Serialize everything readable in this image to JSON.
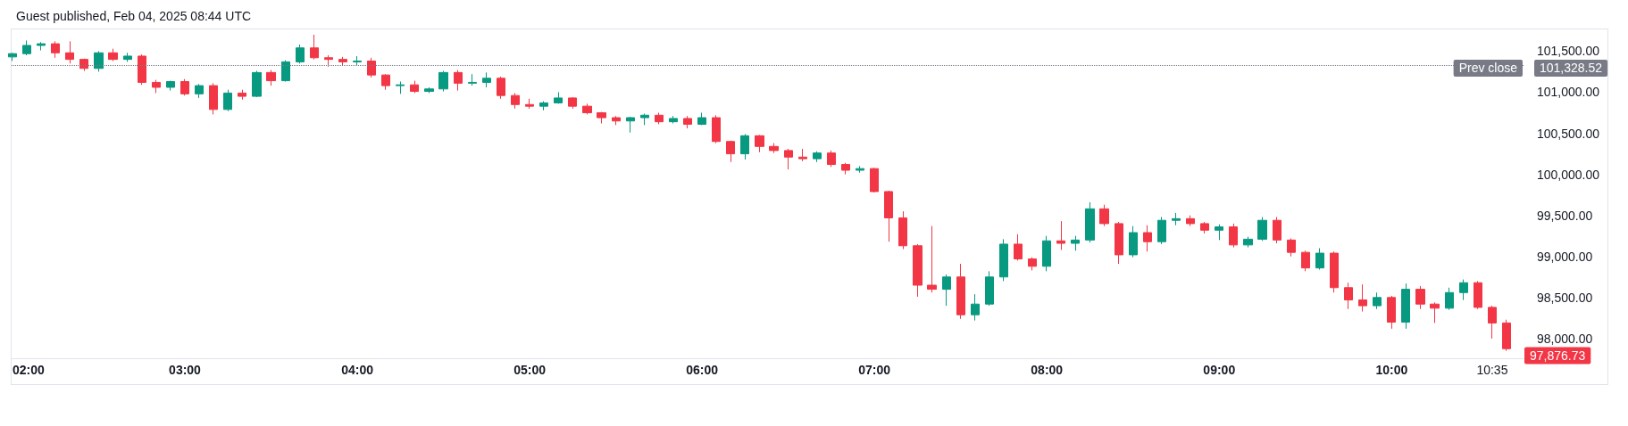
{
  "chart_data": {
    "type": "candlestick",
    "title": "Guest published, Feb 04, 2025 08:44 UTC",
    "x": [
      2,
      2.0833,
      2.1667,
      2.25,
      2.3333,
      2.4167,
      2.5,
      2.5833,
      2.6667,
      2.75,
      2.8333,
      2.9167,
      3,
      3.0833,
      3.1667,
      3.25,
      3.3333,
      3.4167,
      3.5,
      3.5833,
      3.6667,
      3.75,
      3.8333,
      3.9167,
      4,
      4.0833,
      4.1667,
      4.25,
      4.3333,
      4.4167,
      4.5,
      4.5833,
      4.6667,
      4.75,
      4.8333,
      4.9167,
      5,
      5.0833,
      5.1667,
      5.25,
      5.3333,
      5.4167,
      5.5,
      5.5833,
      5.6667,
      5.75,
      5.8333,
      5.9167,
      6,
      6.0833,
      6.1667,
      6.25,
      6.3333,
      6.4167,
      6.5,
      6.5833,
      6.6667,
      6.75,
      6.8333,
      6.9167,
      7,
      7.0833,
      7.1667,
      7.25,
      7.3333,
      7.4167,
      7.5,
      7.5833,
      7.6667,
      7.75,
      7.8333,
      7.9167,
      8,
      8.0833,
      8.1667,
      8.25,
      8.3333,
      8.4167,
      8.5,
      8.5833,
      8.6667,
      8.75,
      8.8333,
      8.9167,
      9,
      9.0833,
      9.1667,
      9.25,
      9.3333,
      9.4167,
      9.5,
      9.5833,
      9.6667,
      9.75,
      9.8333,
      9.9167,
      10,
      10.0833,
      10.1667,
      10.25,
      10.3333,
      10.4167,
      10.5,
      10.5833,
      10.6667
    ],
    "ohlc": [
      [
        101430,
        101480,
        101380,
        101470
      ],
      [
        101470,
        101630,
        101450,
        101570
      ],
      [
        101570,
        101610,
        101510,
        101590
      ],
      [
        101590,
        101620,
        101420,
        101480
      ],
      [
        101480,
        101620,
        101350,
        101400
      ],
      [
        101400,
        101410,
        101260,
        101290
      ],
      [
        101290,
        101500,
        101250,
        101480
      ],
      [
        101480,
        101530,
        101380,
        101400
      ],
      [
        101400,
        101480,
        101370,
        101440
      ],
      [
        101440,
        101460,
        101090,
        101120
      ],
      [
        101120,
        101150,
        100990,
        101060
      ],
      [
        101060,
        101140,
        101020,
        101130
      ],
      [
        101130,
        101160,
        100960,
        100980
      ],
      [
        100980,
        101100,
        100930,
        101080
      ],
      [
        101080,
        101110,
        100730,
        100790
      ],
      [
        100790,
        101030,
        100770,
        100990
      ],
      [
        100990,
        101030,
        100910,
        100950
      ],
      [
        100950,
        101260,
        100940,
        101240
      ],
      [
        101240,
        101270,
        101080,
        101140
      ],
      [
        101140,
        101390,
        101130,
        101370
      ],
      [
        101370,
        101580,
        101350,
        101540
      ],
      [
        101540,
        101700,
        101400,
        101420
      ],
      [
        101420,
        101450,
        101310,
        101400
      ],
      [
        101400,
        101430,
        101320,
        101370
      ],
      [
        101370,
        101440,
        101320,
        101380
      ],
      [
        101380,
        101420,
        101180,
        101210
      ],
      [
        101210,
        101220,
        101030,
        101080
      ],
      [
        101080,
        101130,
        100980,
        101090
      ],
      [
        101090,
        101140,
        100990,
        101010
      ],
      [
        101010,
        101060,
        100990,
        101040
      ],
      [
        101040,
        101260,
        101010,
        101240
      ],
      [
        101240,
        101270,
        101020,
        101110
      ],
      [
        101110,
        101220,
        101080,
        101120
      ],
      [
        101120,
        101240,
        101060,
        101170
      ],
      [
        101170,
        101190,
        100920,
        100960
      ],
      [
        100960,
        100990,
        100800,
        100850
      ],
      [
        100850,
        100920,
        100800,
        100830
      ],
      [
        100830,
        100890,
        100780,
        100870
      ],
      [
        100870,
        101000,
        100860,
        100930
      ],
      [
        100930,
        100940,
        100800,
        100830
      ],
      [
        100830,
        100860,
        100730,
        100750
      ],
      [
        100750,
        100760,
        100620,
        100690
      ],
      [
        100690,
        100710,
        100600,
        100650
      ],
      [
        100650,
        100700,
        100510,
        100690
      ],
      [
        100690,
        100740,
        100600,
        100720
      ],
      [
        100720,
        100750,
        100610,
        100640
      ],
      [
        100640,
        100710,
        100620,
        100680
      ],
      [
        100680,
        100710,
        100560,
        100610
      ],
      [
        100610,
        100750,
        100600,
        100690
      ],
      [
        100690,
        100720,
        100380,
        100400
      ],
      [
        100400,
        100410,
        100150,
        100250
      ],
      [
        100250,
        100490,
        100180,
        100470
      ],
      [
        100470,
        100480,
        100270,
        100340
      ],
      [
        100340,
        100380,
        100260,
        100290
      ],
      [
        100290,
        100310,
        100060,
        100210
      ],
      [
        100210,
        100310,
        100160,
        100190
      ],
      [
        100190,
        100280,
        100150,
        100260
      ],
      [
        100260,
        100290,
        100090,
        100120
      ],
      [
        100120,
        100140,
        100000,
        100050
      ],
      [
        100050,
        100100,
        100020,
        100070
      ],
      [
        100070,
        100080,
        99780,
        99790
      ],
      [
        99790,
        99800,
        99180,
        99470
      ],
      [
        99470,
        99550,
        99090,
        99130
      ],
      [
        99130,
        99150,
        98510,
        98650
      ],
      [
        98650,
        99370,
        98560,
        98600
      ],
      [
        98600,
        98780,
        98400,
        98750
      ],
      [
        98750,
        98910,
        98240,
        98290
      ],
      [
        98290,
        98540,
        98220,
        98420
      ],
      [
        98420,
        98820,
        98400,
        98750
      ],
      [
        98750,
        99210,
        98700,
        99150
      ],
      [
        99150,
        99270,
        98950,
        98970
      ],
      [
        98970,
        98990,
        98830,
        98880
      ],
      [
        98880,
        99250,
        98820,
        99190
      ],
      [
        99190,
        99430,
        99080,
        99160
      ],
      [
        99160,
        99250,
        99070,
        99200
      ],
      [
        99200,
        99660,
        99170,
        99580
      ],
      [
        99580,
        99630,
        99370,
        99400
      ],
      [
        99400,
        99420,
        98910,
        99020
      ],
      [
        99020,
        99370,
        98990,
        99290
      ],
      [
        99290,
        99380,
        99060,
        99180
      ],
      [
        99180,
        99480,
        99150,
        99440
      ],
      [
        99440,
        99530,
        99380,
        99460
      ],
      [
        99460,
        99500,
        99370,
        99400
      ],
      [
        99400,
        99420,
        99280,
        99320
      ],
      [
        99320,
        99390,
        99200,
        99360
      ],
      [
        99360,
        99400,
        99110,
        99140
      ],
      [
        99140,
        99240,
        99110,
        99210
      ],
      [
        99210,
        99480,
        99190,
        99440
      ],
      [
        99440,
        99480,
        99160,
        99200
      ],
      [
        99200,
        99220,
        99000,
        99050
      ],
      [
        99050,
        99070,
        98820,
        98860
      ],
      [
        98860,
        99100,
        98840,
        99040
      ],
      [
        99040,
        99060,
        98560,
        98620
      ],
      [
        98620,
        98680,
        98360,
        98470
      ],
      [
        98470,
        98660,
        98330,
        98400
      ],
      [
        98400,
        98560,
        98360,
        98500
      ],
      [
        98500,
        98520,
        98120,
        98200
      ],
      [
        98200,
        98670,
        98120,
        98600
      ],
      [
        98600,
        98640,
        98360,
        98420
      ],
      [
        98420,
        98440,
        98190,
        98370
      ],
      [
        98370,
        98620,
        98350,
        98560
      ],
      [
        98560,
        98720,
        98470,
        98680
      ],
      [
        98680,
        98700,
        98360,
        98380
      ],
      [
        98380,
        98400,
        98000,
        98190
      ],
      [
        98190,
        98230,
        97850,
        97876.73
      ]
    ],
    "colors": [
      "#089981",
      "#089981",
      "#089981",
      "#f23645",
      "#f23645",
      "#f23645",
      "#089981",
      "#f23645",
      "#089981",
      "#f23645",
      "#f23645",
      "#089981",
      "#f23645",
      "#089981",
      "#f23645",
      "#089981",
      "#f23645",
      "#089981",
      "#f23645",
      "#089981",
      "#089981",
      "#f23645",
      "#f23645",
      "#f23645",
      "#089981",
      "#f23645",
      "#f23645",
      "#089981",
      "#f23645",
      "#089981",
      "#089981",
      "#f23645",
      "#089981",
      "#089981",
      "#f23645",
      "#f23645",
      "#f23645",
      "#089981",
      "#089981",
      "#f23645",
      "#f23645",
      "#f23645",
      "#f23645",
      "#089981",
      "#089981",
      "#f23645",
      "#089981",
      "#f23645",
      "#089981",
      "#f23645",
      "#f23645",
      "#089981",
      "#f23645",
      "#f23645",
      "#f23645",
      "#f23645",
      "#089981",
      "#f23645",
      "#f23645",
      "#089981",
      "#f23645",
      "#f23645",
      "#f23645",
      "#f23645",
      "#f23645",
      "#089981",
      "#f23645",
      "#089981",
      "#089981",
      "#089981",
      "#f23645",
      "#f23645",
      "#089981",
      "#f23645",
      "#089981",
      "#089981",
      "#f23645",
      "#f23645",
      "#089981",
      "#f23645",
      "#089981",
      "#089981",
      "#f23645",
      "#f23645",
      "#089981",
      "#f23645",
      "#089981",
      "#089981",
      "#f23645",
      "#f23645",
      "#f23645",
      "#089981",
      "#f23645",
      "#f23645",
      "#f23645",
      "#089981",
      "#f23645",
      "#089981",
      "#f23645",
      "#f23645",
      "#089981",
      "#089981",
      "#f23645",
      "#f23645",
      "#f23645"
    ],
    "xlim": [
      1.995,
      10.765
    ],
    "xticks": [
      {
        "value": 2,
        "label": "02:00"
      },
      {
        "value": 3,
        "label": "03:00"
      },
      {
        "value": 4,
        "label": "04:00"
      },
      {
        "value": 5,
        "label": "05:00"
      },
      {
        "value": 6,
        "label": "06:00"
      },
      {
        "value": 7,
        "label": "07:00"
      },
      {
        "value": 8,
        "label": "08:00"
      },
      {
        "value": 9,
        "label": "09:00"
      },
      {
        "value": 10,
        "label": "10:00"
      },
      {
        "value": 10.5833,
        "label": "10:35"
      }
    ],
    "ylim": [
      97760,
      101765
    ],
    "yticks": [
      {
        "value": 98000,
        "label": "98,000.00"
      },
      {
        "value": 98500,
        "label": "98,500.00"
      },
      {
        "value": 99000,
        "label": "99,000.00"
      },
      {
        "value": 99500,
        "label": "99,500.00"
      },
      {
        "value": 100000,
        "label": "100,000.00"
      },
      {
        "value": 100500,
        "label": "100,500.00"
      },
      {
        "value": 101000,
        "label": "101,000.00"
      },
      {
        "value": 101500,
        "label": "101,500.00"
      }
    ],
    "grid": false,
    "ref_lines": [
      {
        "axis": "y",
        "value": 101328.52,
        "label": "Prev close",
        "color": "#787b86",
        "line_style": "dotted"
      }
    ],
    "annotations": [
      {
        "text": "101,328.52",
        "x": 10.765,
        "y": 101328.52
      },
      {
        "text": "97,876.73",
        "x": 10.6667,
        "y": 97876.73
      }
    ]
  }
}
